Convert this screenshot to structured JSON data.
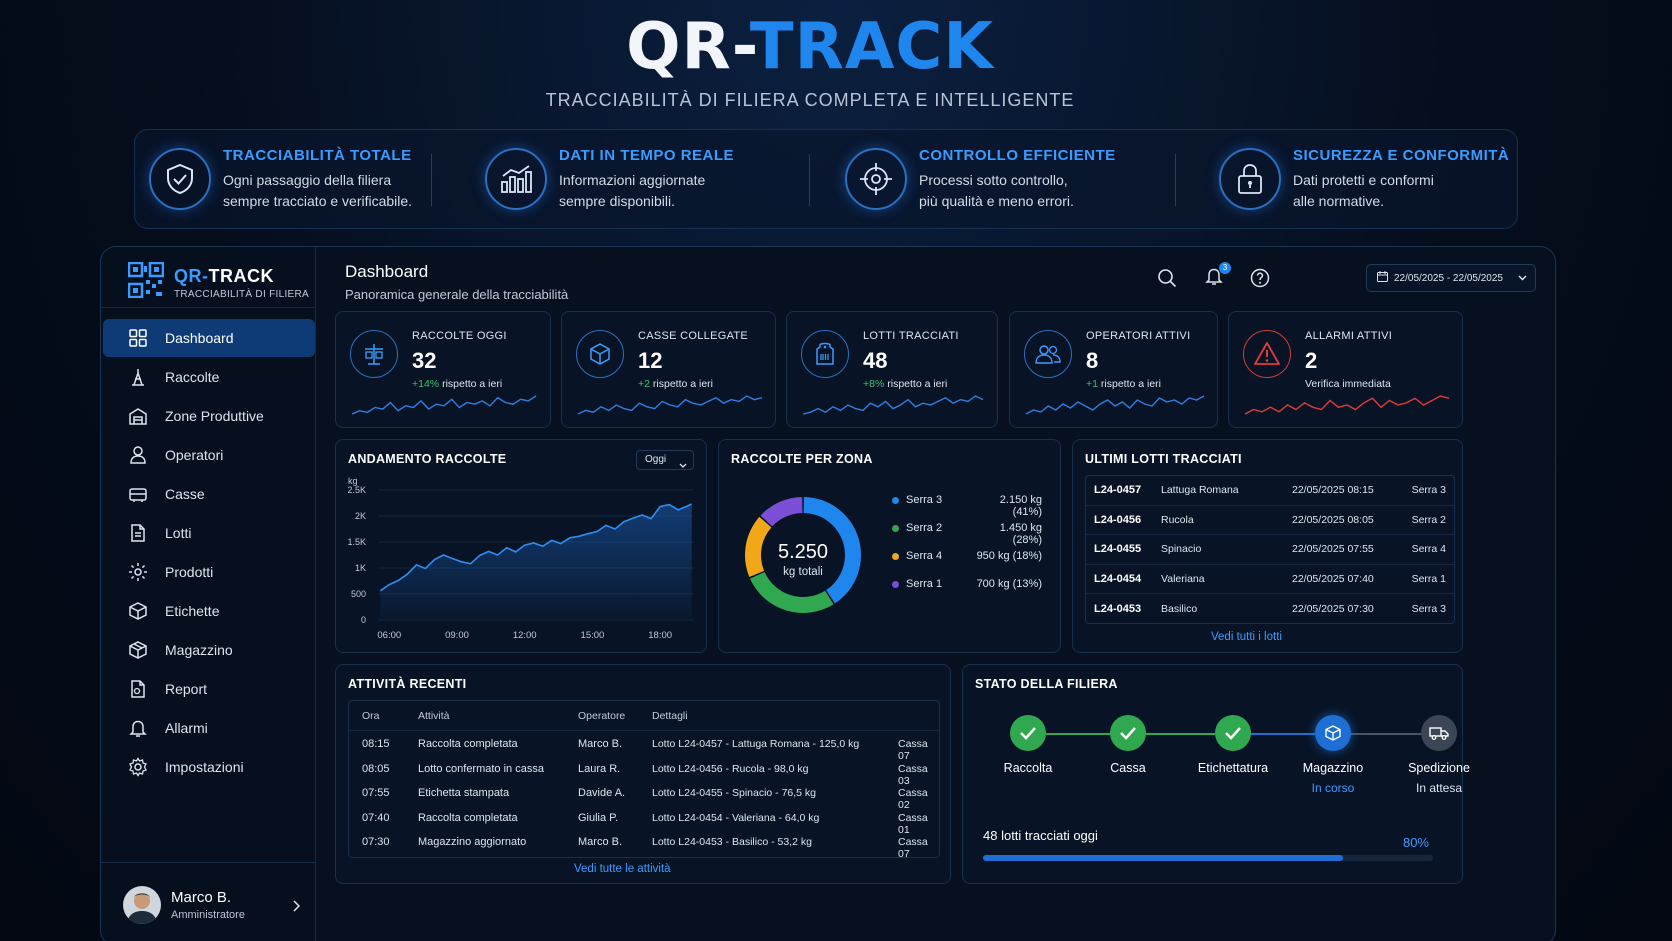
{
  "hero": {
    "title_part1": "QR-",
    "title_part2": "TRACK",
    "subtitle": "TRACCIABILITÀ DI FILIERA COMPLETA E INTELLIGENTE"
  },
  "features": [
    {
      "icon": "shield-check-icon",
      "title": "TRACCIABILITÀ TOTALE",
      "line1": "Ogni passaggio della filiera",
      "line2": "sempre tracciato e verificabile."
    },
    {
      "icon": "bar-chart-icon",
      "title": "DATI IN TEMPO REALE",
      "line1": "Informazioni aggiornate",
      "line2": "sempre disponibili."
    },
    {
      "icon": "target-icon",
      "title": "CONTROLLO EFFICIENTE",
      "line1": "Processi sotto controllo,",
      "line2": "più qualità e meno errori."
    },
    {
      "icon": "lock-icon",
      "title": "SICUREZZA E CONFORMITÀ",
      "line1": "Dati protetti e conformi",
      "line2": "alle normative."
    }
  ],
  "sidebar": {
    "brand_part1": "QR-",
    "brand_part2": "TRACK",
    "brand_sub": "TRACCIABILITÀ DI FILIERA",
    "items": [
      {
        "label": "Dashboard",
        "icon": "grid-icon",
        "active": true
      },
      {
        "label": "Raccolte",
        "icon": "harvest-icon"
      },
      {
        "label": "Zone Produttive",
        "icon": "zone-icon"
      },
      {
        "label": "Operatori",
        "icon": "user-icon"
      },
      {
        "label": "Casse",
        "icon": "crate-icon"
      },
      {
        "label": "Lotti",
        "icon": "document-icon"
      },
      {
        "label": "Prodotti",
        "icon": "product-icon"
      },
      {
        "label": "Etichette",
        "icon": "label-icon"
      },
      {
        "label": "Magazzino",
        "icon": "warehouse-icon"
      },
      {
        "label": "Report",
        "icon": "report-icon"
      },
      {
        "label": "Allarmi",
        "icon": "bell-icon"
      },
      {
        "label": "Impostazioni",
        "icon": "gear-icon"
      }
    ],
    "user": {
      "name": "Marco B.",
      "role": "Amministratore"
    }
  },
  "header": {
    "title": "Dashboard",
    "subtitle": "Panoramica generale della tracciabilità",
    "notifications": "3",
    "date_range": "22/05/2025 - 22/05/2025"
  },
  "kpis": [
    {
      "label": "RACCOLTE OGGI",
      "value": "32",
      "delta": "+14%",
      "delta_text": "rispetto a ieri",
      "spark": [
        5,
        7,
        6,
        9,
        8,
        12,
        7,
        10,
        9,
        13,
        8,
        11,
        10,
        14,
        9,
        12,
        11,
        13,
        10,
        15,
        12,
        11,
        14,
        13,
        16
      ],
      "color": "#2f7fe0"
    },
    {
      "label": "CASSE COLLEGATE",
      "value": "12",
      "delta": "+2",
      "delta_text": "rispetto a ieri",
      "spark": [
        4,
        6,
        5,
        8,
        6,
        9,
        7,
        6,
        10,
        8,
        7,
        11,
        9,
        8,
        12,
        10,
        9,
        11,
        13,
        10,
        12,
        11,
        14,
        12,
        13
      ],
      "color": "#2f7fe0"
    },
    {
      "label": "LOTTI TRACCIATI",
      "value": "48",
      "delta": "+8%",
      "delta_text": "rispetto a ieri",
      "spark": [
        5,
        6,
        8,
        6,
        9,
        7,
        10,
        8,
        7,
        11,
        9,
        12,
        8,
        10,
        13,
        9,
        11,
        10,
        12,
        14,
        11,
        13,
        12,
        15,
        13
      ],
      "color": "#2f7fe0"
    },
    {
      "label": "OPERATORI ATTIVI",
      "value": "8",
      "delta": "+1",
      "delta_text": "rispetto a ieri",
      "spark": [
        6,
        8,
        7,
        10,
        8,
        11,
        9,
        12,
        10,
        8,
        11,
        13,
        10,
        12,
        9,
        13,
        11,
        10,
        14,
        12,
        13,
        11,
        14,
        13,
        15
      ],
      "color": "#2f7fe0"
    },
    {
      "label": "ALLARMI ATTIVI",
      "value": "2",
      "delta": "",
      "delta_text": "Verifica immediata",
      "spark": [
        6,
        8,
        7,
        9,
        7,
        10,
        8,
        11,
        9,
        8,
        12,
        9,
        10,
        8,
        11,
        13,
        9,
        12,
        10,
        11,
        13,
        10,
        12,
        14,
        13
      ],
      "color": "#e03a3a"
    }
  ],
  "andamento": {
    "title": "ANDAMENTO RACCOLTE",
    "filter": "Oggi",
    "unit": "kg"
  },
  "chart_data": [
    {
      "type": "area",
      "title": "ANDAMENTO RACCOLTE",
      "ylabel": "kg",
      "x_ticks": [
        "06:00",
        "09:00",
        "12:00",
        "15:00",
        "18:00"
      ],
      "y_ticks": [
        "0",
        "500",
        "1K",
        "1.5K",
        "2K",
        "2.5K"
      ],
      "ylim": [
        0,
        2500
      ],
      "xlim": [
        5.5,
        19.5
      ],
      "x": [
        5.6,
        6.0,
        6.4,
        6.8,
        7.2,
        7.6,
        8.0,
        8.4,
        8.8,
        9.2,
        9.6,
        10.0,
        10.4,
        10.8,
        11.2,
        11.6,
        12.0,
        12.4,
        12.8,
        13.2,
        13.6,
        14.0,
        14.4,
        14.8,
        15.2,
        15.6,
        16.0,
        16.4,
        16.8,
        17.2,
        17.6,
        18.0,
        18.4,
        18.8,
        19.2,
        19.4
      ],
      "y": [
        560,
        680,
        760,
        880,
        1060,
        990,
        1160,
        1250,
        1180,
        1120,
        1080,
        1240,
        1320,
        1250,
        1390,
        1310,
        1440,
        1480,
        1420,
        1530,
        1470,
        1580,
        1610,
        1660,
        1700,
        1820,
        1750,
        1890,
        1960,
        2020,
        1950,
        2180,
        2220,
        2120,
        2190,
        2230
      ]
    },
    {
      "type": "pie",
      "title": "RACCOLTE PER ZONA",
      "center_value": "5.250",
      "center_label": "kg totali",
      "slices": [
        {
          "name": "Serra 3",
          "value": 2150,
          "label": "2.150 kg (41%)",
          "color": "#1f86ee"
        },
        {
          "name": "Serra 2",
          "value": 1450,
          "label": "1.450 kg (28%)",
          "color": "#2fa84f"
        },
        {
          "name": "Serra 4",
          "value": 950,
          "label": "950 kg (18%)",
          "color": "#f0a818"
        },
        {
          "name": "Serra 1",
          "value": 700,
          "label": "700 kg (13%)",
          "color": "#7a4fd6"
        }
      ]
    }
  ],
  "zones": {
    "title": "RACCOLTE PER ZONA"
  },
  "lots": {
    "title": "ULTIMI LOTTI TRACCIATI",
    "rows": [
      {
        "id": "L24-0457",
        "product": "Lattuga Romana",
        "date": "22/05/2025 08:15",
        "zone": "Serra 3"
      },
      {
        "id": "L24-0456",
        "product": "Rucola",
        "date": "22/05/2025 08:05",
        "zone": "Serra 2"
      },
      {
        "id": "L24-0455",
        "product": "Spinacio",
        "date": "22/05/2025 07:55",
        "zone": "Serra 4"
      },
      {
        "id": "L24-0454",
        "product": "Valeriana",
        "date": "22/05/2025 07:40",
        "zone": "Serra 1"
      },
      {
        "id": "L24-0453",
        "product": "Basilico",
        "date": "22/05/2025 07:30",
        "zone": "Serra 3"
      }
    ],
    "link": "Vedi tutti i lotti"
  },
  "activity": {
    "title": "ATTIVITÀ RECENTI",
    "headers": {
      "time": "Ora",
      "activity": "Attività",
      "operator": "Operatore",
      "details": "Dettagli"
    },
    "rows": [
      {
        "time": "08:15",
        "activity": "Raccolta completata",
        "operator": "Marco B.",
        "details": "Lotto L24-0457 - Lattuga Romana - 125,0 kg",
        "cassa": "Cassa 07"
      },
      {
        "time": "08:05",
        "activity": "Lotto confermato in cassa",
        "operator": "Laura R.",
        "details": "Lotto L24-0456 - Rucola - 98,0 kg",
        "cassa": "Cassa 03"
      },
      {
        "time": "07:55",
        "activity": "Etichetta stampata",
        "operator": "Davide A.",
        "details": "Lotto L24-0455 - Spinacio - 76,5 kg",
        "cassa": "Cassa 02"
      },
      {
        "time": "07:40",
        "activity": "Raccolta completata",
        "operator": "Giulia P.",
        "details": "Lotto L24-0454 - Valeriana - 64,0 kg",
        "cassa": "Cassa 01"
      },
      {
        "time": "07:30",
        "activity": "Magazzino aggiornato",
        "operator": "Marco B.",
        "details": "Lotto L24-0453 - Basilico - 53,2 kg",
        "cassa": "Cassa 07"
      }
    ],
    "link": "Vedi tutte le attività"
  },
  "supply": {
    "title": "STATO DELLA FILIERA",
    "steps": [
      {
        "label": "Raccolta",
        "status": "",
        "state": "done",
        "icon": "check-icon"
      },
      {
        "label": "Cassa",
        "status": "",
        "state": "done",
        "icon": "check-icon"
      },
      {
        "label": "Etichettatura",
        "status": "",
        "state": "done",
        "icon": "check-icon"
      },
      {
        "label": "Magazzino",
        "status": "In corso",
        "state": "current",
        "icon": "box-icon"
      },
      {
        "label": "Spedizione",
        "status": "In attesa",
        "state": "pending",
        "icon": "truck-icon"
      }
    ],
    "progress_label": "48 lotti tracciati oggi",
    "progress_pct": "80%",
    "progress_value": 0.8
  },
  "colors": {
    "accent": "#1f86ee",
    "success": "#2fa84f",
    "danger": "#e03a3a",
    "background": "#050d1c"
  }
}
